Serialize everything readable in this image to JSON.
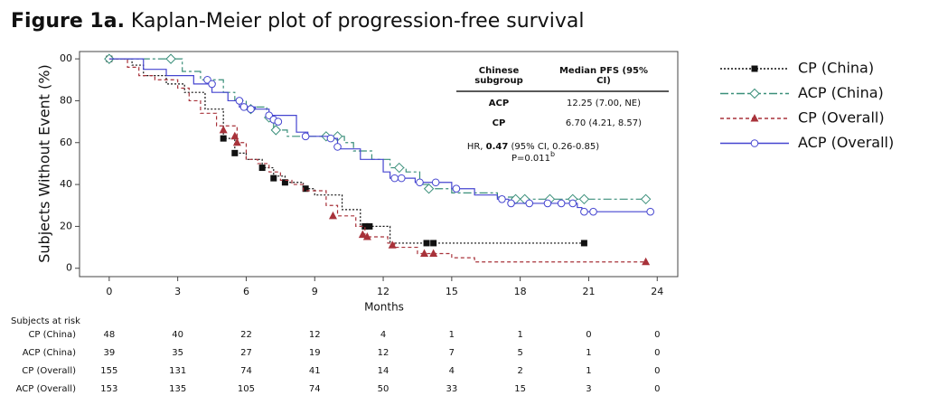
{
  "chart_data": {
    "type": "km",
    "title_label": "Figure 1a.",
    "title": "Kaplan-Meier plot of progression-free survival",
    "xlabel": "Months",
    "ylabel": "Subjects Without Event (%)",
    "xlim": [
      -1.3,
      24.9
    ],
    "ylim": [
      -4,
      103.5
    ],
    "xticks": [
      0,
      3,
      6,
      9,
      12,
      15,
      18,
      21,
      24
    ],
    "yticks": [
      0,
      20,
      40,
      60,
      80,
      {
        "value": 100,
        "label": "00"
      }
    ],
    "series": [
      {
        "name": "CP (China)",
        "color": "#111111",
        "dash": "2,2",
        "marker": "square",
        "x": [
          0,
          1,
          1.5,
          2.5,
          3.3,
          4.2,
          5,
          5.5,
          6,
          6.7,
          7.2,
          7.7,
          8.5,
          9,
          10.2,
          11,
          12.3,
          20.8
        ],
        "values": [
          100,
          97,
          92,
          88,
          84,
          76,
          62,
          55,
          52,
          48,
          44,
          41,
          38,
          35,
          28,
          20,
          12,
          12
        ],
        "censor_x": [
          0,
          5,
          5.5,
          6.7,
          7.2,
          7.7,
          8.6,
          11.2,
          11.4,
          13.9,
          14.2,
          20.8
        ],
        "censor_values": [
          100,
          62,
          55,
          48,
          43,
          41,
          38,
          20,
          20,
          12,
          12,
          12
        ]
      },
      {
        "name": "ACP (China)",
        "color": "#3a8f7a",
        "dash": "9,3,3,3",
        "marker": "diamond",
        "x": [
          0,
          2.7,
          3.2,
          4,
          5,
          5.5,
          6,
          6.9,
          7.2,
          7.8,
          10.3,
          10.7,
          11.5,
          12.3,
          13,
          13.6,
          14,
          15,
          17,
          17.8,
          23.5
        ],
        "values": [
          100,
          100,
          94,
          90,
          84,
          80,
          77,
          72,
          66,
          63,
          60,
          56,
          52,
          48,
          46,
          40,
          38,
          36,
          34,
          33,
          33
        ],
        "censor_x": [
          0,
          2.7,
          6.2,
          7,
          7.3,
          9.5,
          10,
          12.7,
          14,
          17.8,
          18.2,
          19.3,
          20.3,
          20.8,
          23.5
        ],
        "censor_values": [
          100,
          100,
          76,
          72,
          66,
          63,
          63,
          48,
          38,
          33,
          33,
          33,
          33,
          33,
          33
        ]
      },
      {
        "name": "CP (Overall)",
        "color": "#a8323a",
        "dash": "4,3",
        "marker": "triangle",
        "x": [
          0,
          0.8,
          1.3,
          2,
          3,
          3.5,
          4,
          4.7,
          5.6,
          6,
          6.5,
          7,
          7.5,
          8,
          8.5,
          9.5,
          10,
          10.8,
          11.2,
          12.2,
          12.5,
          13.5,
          15,
          16,
          23.5
        ],
        "values": [
          100,
          96,
          92,
          90,
          86,
          80,
          74,
          68,
          60,
          52,
          50,
          46,
          42,
          40,
          37,
          30,
          25,
          20,
          15,
          12,
          10,
          7,
          5,
          3,
          3
        ],
        "censor_x": [
          5,
          5.5,
          5.6,
          9.8,
          11.1,
          11.3,
          12.4,
          13.8,
          14.2,
          23.5
        ],
        "censor_values": [
          66,
          63,
          60,
          25,
          16,
          15,
          11,
          7,
          7,
          3
        ]
      },
      {
        "name": "ACP (Overall)",
        "color": "#4545d0",
        "dash": "",
        "marker": "circle",
        "x": [
          0,
          1.5,
          2.5,
          3.7,
          4.5,
          5.2,
          5.7,
          6.4,
          7,
          8.2,
          8.7,
          9.6,
          10,
          11,
          12,
          12.3,
          13.4,
          15,
          16,
          17,
          17.5,
          20.5,
          20.7,
          23.7
        ],
        "values": [
          100,
          95,
          92,
          88,
          84,
          80,
          77,
          76,
          73,
          65,
          63,
          62,
          57,
          52,
          46,
          43,
          41,
          38,
          35,
          33,
          31,
          29,
          27,
          27
        ],
        "censor_x": [
          4.3,
          4.5,
          5.7,
          5.9,
          6.2,
          7,
          7.2,
          7.4,
          8.6,
          9.7,
          10,
          12.5,
          12.8,
          13.6,
          14.3,
          15.2,
          17.2,
          17.6,
          18.4,
          19.2,
          19.8,
          20.3,
          20.8,
          21.2,
          23.7
        ],
        "censor_values": [
          90,
          88,
          80,
          77,
          76,
          73,
          71,
          70,
          63,
          62,
          58,
          43,
          43,
          41,
          41,
          38,
          33,
          31,
          31,
          31,
          31,
          31,
          27,
          27,
          27
        ]
      }
    ],
    "inset": {
      "headers": [
        [
          "Chinese",
          "subgroup"
        ],
        [
          "Median PFS (95%",
          "CI)"
        ]
      ],
      "rows": [
        [
          "ACP",
          "12.25 (7.00, NE)"
        ],
        [
          "CP",
          "6.70 (4.21, 8.57)"
        ]
      ],
      "hr_prefix": "HR,",
      "hr_value": "0.47",
      "hr_rest": "(95% CI, 0.26-0.85)",
      "p": "P=0.011",
      "p_sup": "b"
    },
    "risk_table": {
      "title": "Subjects at risk",
      "rows": [
        {
          "name": "CP (China)",
          "values": [
            48,
            40,
            22,
            12,
            4,
            1,
            1,
            0,
            0
          ]
        },
        {
          "name": "ACP (China)",
          "values": [
            39,
            35,
            27,
            19,
            12,
            7,
            5,
            1,
            0
          ]
        },
        {
          "name": "CP (Overall)",
          "values": [
            155,
            131,
            74,
            41,
            14,
            4,
            2,
            1,
            0
          ]
        },
        {
          "name": "ACP (Overall)",
          "values": [
            153,
            135,
            105,
            74,
            50,
            33,
            15,
            3,
            0
          ]
        }
      ]
    }
  }
}
